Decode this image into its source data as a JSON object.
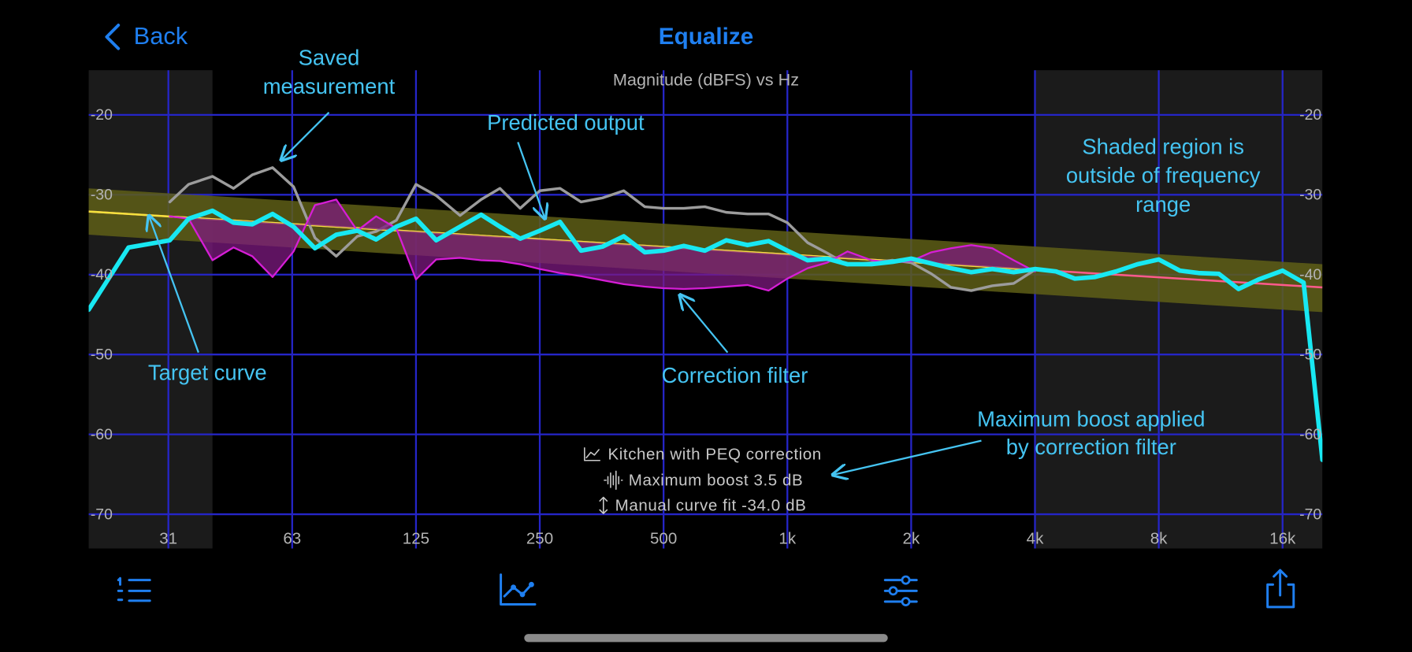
{
  "nav": {
    "back": "Back",
    "title": "Equalize"
  },
  "chart_data": {
    "type": "line",
    "title": "Magnitude (dBFS) vs Hz",
    "x_scale": "log",
    "xlim": [
      20,
      20000
    ],
    "ylim": [
      -74.3,
      -14.4
    ],
    "xticks": [
      {
        "value": 31.25,
        "label": "31"
      },
      {
        "value": 62.5,
        "label": "63"
      },
      125,
      250,
      500,
      {
        "value": 1000,
        "label": "1k"
      },
      {
        "value": 2000,
        "label": "2k"
      },
      {
        "value": 4000,
        "label": "4k"
      },
      {
        "value": 8000,
        "label": "8k"
      },
      {
        "value": 16000,
        "label": "16k"
      }
    ],
    "yticks": [
      -20,
      -30,
      -40,
      -50,
      -60,
      -70
    ],
    "grid": true,
    "grid_color": "#2525c8",
    "shaded_outside": [
      40,
      4000
    ],
    "shade_color": "#1b1b1b",
    "x": [
      20,
      25,
      31.5,
      35,
      40,
      45,
      50,
      56,
      63,
      71,
      80,
      90,
      100,
      112,
      125,
      140,
      160,
      180,
      200,
      224,
      250,
      280,
      315,
      355,
      400,
      450,
      500,
      560,
      630,
      710,
      800,
      900,
      1000,
      1120,
      1250,
      1400,
      1600,
      1800,
      2000,
      2240,
      2500,
      2800,
      3150,
      3550,
      4000,
      4500,
      5000,
      5600,
      6300,
      7100,
      8000,
      9000,
      10000,
      11200,
      12500,
      14000,
      16000,
      18000,
      20000
    ],
    "target": {
      "x": [
        20,
        20000
      ],
      "values": [
        -32.1,
        -41.6
      ],
      "color": "#f4e23c",
      "out_of_range_color": "#ff5a8c",
      "band_upper": [
        -29.2,
        -38.7
      ],
      "band_lower": [
        -35,
        -44.7
      ],
      "band_color": "#5e5e16"
    },
    "series": [
      {
        "color": "#9c9c9c",
        "width": 3,
        "values": [
          null,
          null,
          -30.9,
          -28.7,
          -27.7,
          -29.2,
          -27.5,
          -26.6,
          -29,
          -35.4,
          -37.7,
          -35.2,
          -34.6,
          -33.2,
          -28.7,
          -30.1,
          -32.6,
          -30.6,
          -29.2,
          -31.7,
          -29.5,
          -29.2,
          -30.9,
          -30.4,
          -29.5,
          -31.5,
          -31.7,
          -31.7,
          -31.5,
          -32.2,
          -32.4,
          -32.4,
          -33.5,
          -36,
          -37.3,
          -38.8,
          -38.5,
          -38.2,
          -38.5,
          -39.9,
          -41.6,
          -42,
          -41.4,
          -41.1,
          -39.4,
          null,
          null,
          null,
          null,
          null,
          null,
          null,
          null,
          null,
          null,
          null,
          null,
          null,
          null
        ]
      },
      {
        "color": "#d61ed6",
        "fill": "#7e1a80",
        "width": 2,
        "values": [
          null,
          null,
          -32.7,
          -33,
          -38.2,
          -36.6,
          -37.7,
          -40.3,
          -37.1,
          -31.3,
          -30.6,
          -34.5,
          -32.7,
          -34.2,
          -40.6,
          -38.1,
          -37.9,
          -38.2,
          -38.3,
          -38.7,
          -39.3,
          -39.8,
          -40.2,
          -40.7,
          -41.2,
          -41.5,
          -41.7,
          -41.8,
          -41.7,
          -41.5,
          -41.3,
          -42,
          -40.5,
          -39.2,
          -38.5,
          -37.1,
          -38.2,
          -38.5,
          -38.3,
          -37.2,
          -36.7,
          -36.3,
          -36.7,
          -38.2,
          -39.6,
          null,
          null,
          null,
          null,
          null,
          null,
          null,
          null,
          null,
          null,
          null,
          null,
          null,
          null
        ]
      },
      {
        "color": "#18e8f2",
        "width": 5,
        "values": [
          -44.4,
          -36.6,
          -35.7,
          -33,
          -32,
          -33.5,
          -33.7,
          -32.4,
          -34,
          -36.7,
          -35,
          -34.5,
          -35.6,
          -34,
          -33,
          -35.7,
          -34,
          -32.5,
          -34,
          -35.5,
          -34.5,
          -33.4,
          -37,
          -36.5,
          -35.2,
          -37.2,
          -37,
          -36.4,
          -37,
          -35.7,
          -36.3,
          -35.8,
          -37,
          -38.2,
          -38,
          -38.7,
          -38.7,
          -38.4,
          -38,
          -38.6,
          -39.2,
          -39.7,
          -39.3,
          -39.7,
          -39.3,
          -39.6,
          -40.5,
          -40.3,
          -39.6,
          -38.7,
          -38.1,
          -39.5,
          -39.8,
          -39.9,
          -41.8,
          -40.6,
          -39.5,
          -41,
          -63.2
        ]
      }
    ]
  },
  "annotations": [
    {
      "lines": [
        "Saved",
        "measurement"
      ]
    },
    {
      "lines": [
        "Predicted output"
      ]
    },
    {
      "lines": [
        "Shaded region is",
        "outside of frequency",
        "range"
      ]
    },
    {
      "lines": [
        "Target curve"
      ]
    },
    {
      "lines": [
        "Correction filter"
      ]
    },
    {
      "lines": [
        "Maximum boost applied",
        "by correction filter"
      ]
    }
  ],
  "info": [
    "Kitchen with PEQ correction",
    "Maximum boost 3.5 dB",
    "Manual curve fit -34.0 dB"
  ]
}
